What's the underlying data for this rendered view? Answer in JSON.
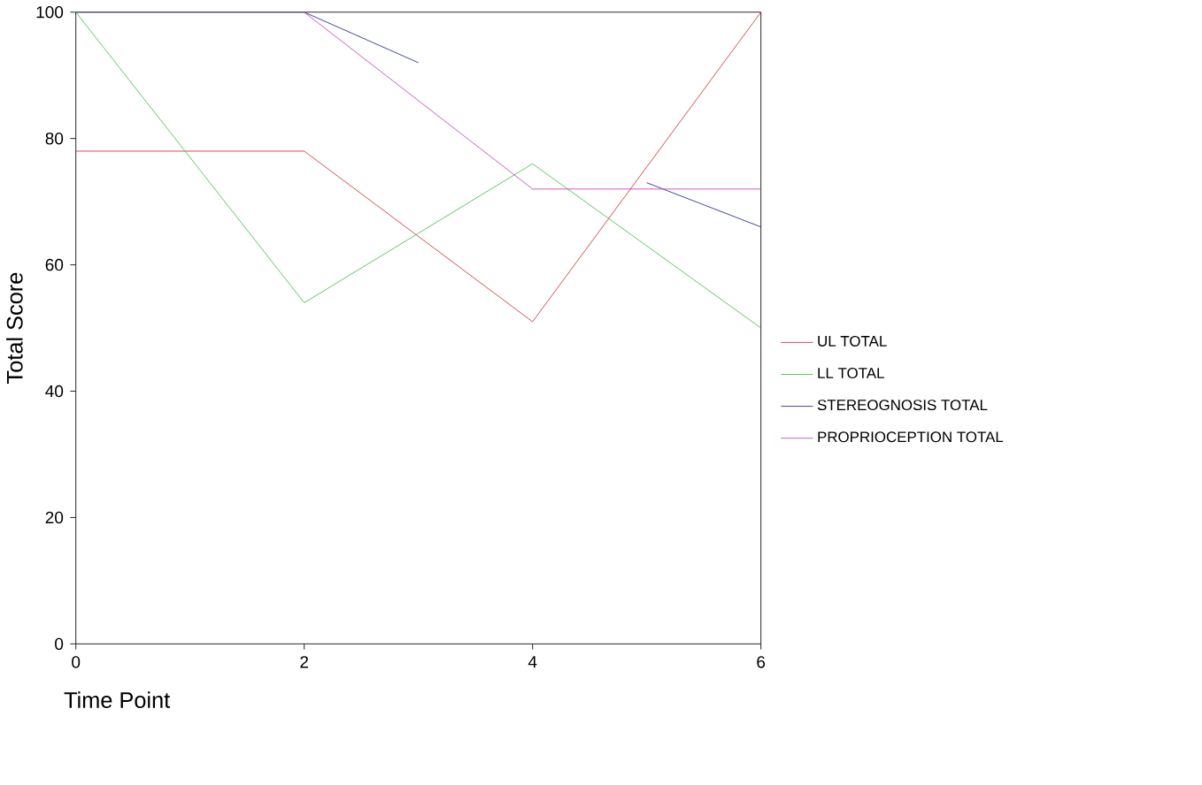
{
  "chart_data": {
    "type": "line",
    "xlabel": "Time Point",
    "ylabel": "Total Score",
    "xlim": [
      0,
      6
    ],
    "ylim": [
      0,
      100
    ],
    "xticks": [
      0,
      2,
      4,
      6
    ],
    "yticks": [
      0,
      20,
      40,
      60,
      80,
      100
    ],
    "grid": false,
    "legend": "right",
    "marker": "none",
    "line_style": "solid",
    "series": [
      {
        "name": "UL TOTAL",
        "color": "#d03030",
        "x": [
          0,
          2,
          4,
          6
        ],
        "values": [
          78,
          78,
          51,
          100
        ]
      },
      {
        "name": "LL TOTAL",
        "color": "#40c040",
        "x": [
          0,
          2,
          4,
          6
        ],
        "values": [
          100,
          54,
          76,
          50
        ]
      },
      {
        "name": "STEREOGNOSIS TOTAL",
        "color": "#2020a0",
        "x": [
          0,
          2,
          3,
          4,
          5,
          6
        ],
        "values": [
          100,
          100,
          92,
          null,
          73,
          66
        ]
      },
      {
        "name": "PROPRIOCEPTION TOTAL",
        "color": "#c040c0",
        "x": [
          2,
          4,
          6
        ],
        "values": [
          100,
          72,
          72
        ]
      }
    ]
  }
}
